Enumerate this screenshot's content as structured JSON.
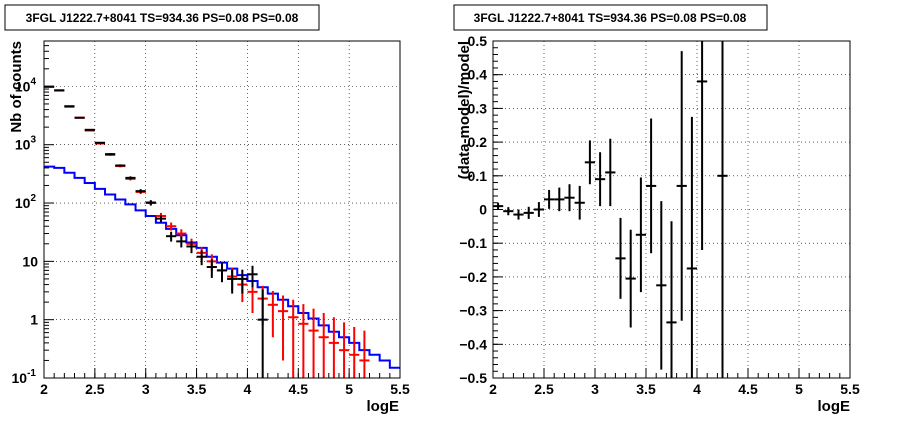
{
  "chart_data": [
    {
      "type": "histogram",
      "title": "3FGL J1222.7+8041 TS=934.36 PS=0.08 PS=0.08",
      "xlabel": "logE",
      "ylabel": "Nb of counts",
      "xlim": [
        2,
        5.5
      ],
      "ylim": [
        0.1,
        60000
      ],
      "yscale": "log",
      "grid": true,
      "x_ticks": [
        "2",
        "2.5",
        "3",
        "3.5",
        "4",
        "4.5",
        "5",
        "5.5"
      ],
      "y_ticks": [
        "10^{-1}",
        "1",
        "10",
        "10^{2}",
        "10^{3}",
        "10^{4}"
      ],
      "x_edges": [
        2.0,
        2.1,
        2.2,
        2.3,
        2.4,
        2.5,
        2.6,
        2.7,
        2.8,
        2.9,
        3.0,
        3.1,
        3.2,
        3.3,
        3.4,
        3.5,
        3.6,
        3.7,
        3.8,
        3.9,
        4.0,
        4.1,
        4.2,
        4.3,
        4.4,
        4.5,
        4.6,
        4.7,
        4.8,
        4.9,
        5.0,
        5.1,
        5.2,
        5.3,
        5.4,
        5.5
      ],
      "series": [
        {
          "kind": "data_points",
          "color": "#000000",
          "x": [
            2.05,
            2.15,
            2.25,
            2.35,
            2.45,
            2.55,
            2.65,
            2.75,
            2.85,
            2.95,
            3.05,
            3.15,
            3.25,
            3.35,
            3.45,
            3.55,
            3.65,
            3.75,
            3.85,
            3.95,
            4.05,
            4.15
          ],
          "y": [
            9900,
            8500,
            4500,
            2900,
            1800,
            1080,
            690,
            440,
            270,
            160,
            102,
            54,
            27,
            22,
            18,
            12,
            8,
            7,
            5,
            5,
            6,
            1
          ],
          "err_low": [
            100,
            90,
            70,
            55,
            42,
            33,
            27,
            21,
            17,
            13,
            10,
            7,
            5.2,
            4.7,
            4.2,
            3.4,
            2.8,
            2.6,
            2.2,
            2.2,
            2.4,
            0.9
          ],
          "err_high": [
            100,
            90,
            70,
            55,
            42,
            33,
            27,
            21,
            17,
            13,
            10,
            7,
            5.2,
            4.7,
            4.2,
            3.4,
            2.8,
            2.6,
            2.2,
            2.2,
            2.4,
            2.3
          ]
        },
        {
          "kind": "model_points",
          "color": "#ff0000",
          "x": [
            2.05,
            2.15,
            2.25,
            2.35,
            2.45,
            2.55,
            2.65,
            2.75,
            2.85,
            2.95,
            3.05,
            3.15,
            3.25,
            3.35,
            3.45,
            3.55,
            3.65,
            3.75,
            3.85,
            3.95,
            4.05,
            4.15,
            4.25,
            4.35,
            4.45,
            4.55,
            4.65,
            4.75,
            4.85,
            4.95,
            5.05,
            5.15
          ],
          "y": [
            9800,
            8600,
            4600,
            2900,
            1750,
            1050,
            670,
            430,
            260,
            155,
            100,
            60,
            40,
            30,
            20,
            14,
            10,
            7,
            5.5,
            4,
            3,
            2.3,
            1.8,
            1.4,
            1.1,
            0.85,
            0.65,
            0.5,
            0.4,
            0.3,
            0.25,
            0.2
          ],
          "err_low": [
            99,
            93,
            68,
            54,
            42,
            32,
            26,
            21,
            16,
            12.5,
            10,
            7.7,
            6.3,
            5.5,
            4.5,
            3.7,
            3.2,
            2.6,
            2.3,
            2,
            1.7,
            1.5,
            1.3,
            1.2,
            1,
            0.9,
            0.65,
            0.5,
            0.4,
            0.3,
            0.25,
            0.2
          ],
          "err_high": [
            99,
            93,
            68,
            54,
            42,
            32,
            26,
            21,
            16,
            12.5,
            10,
            7.7,
            6.3,
            5.5,
            4.5,
            3.7,
            3.2,
            2.6,
            2.3,
            2,
            1.7,
            1.5,
            1.3,
            1.2,
            1.1,
            1,
            0.9,
            0.8,
            0.7,
            0.6,
            0.5,
            0.45
          ]
        },
        {
          "kind": "histogram_step",
          "color": "#0000ff",
          "values": [
            420,
            400,
            330,
            270,
            220,
            175,
            140,
            115,
            95,
            75,
            60,
            46,
            36,
            28,
            21,
            17,
            12,
            9.5,
            7.5,
            5.8,
            4.6,
            3.6,
            2.8,
            2.2,
            1.7,
            1.3,
            1.05,
            0.8,
            0.62,
            0.5,
            0.4,
            0.3,
            0.25,
            0.2,
            0.15
          ]
        }
      ]
    },
    {
      "type": "scatter_errorbar",
      "title": "3FGL J1222.7+8041 TS=934.36 PS=0.08 PS=0.08",
      "xlabel": "logE",
      "ylabel": "(data-model)/model",
      "xlim": [
        2,
        5.5
      ],
      "ylim": [
        -0.5,
        0.5
      ],
      "grid": true,
      "x_ticks": [
        "2",
        "2.5",
        "3",
        "3.5",
        "4",
        "4.5",
        "5",
        "5.5"
      ],
      "y_ticks": [
        "-0.5",
        "-0.4",
        "-0.3",
        "-0.2",
        "-0.1",
        "0",
        "0.1",
        "0.2",
        "0.3",
        "0.4",
        "0.5"
      ],
      "series": [
        {
          "color": "#000000",
          "x": [
            2.05,
            2.15,
            2.25,
            2.35,
            2.45,
            2.55,
            2.65,
            2.75,
            2.85,
            2.95,
            3.05,
            3.15,
            3.25,
            3.35,
            3.45,
            3.55,
            3.65,
            3.75,
            3.85,
            3.95,
            4.05,
            4.25
          ],
          "y": [
            0.01,
            -0.005,
            -0.015,
            -0.01,
            0.0,
            0.03,
            0.03,
            0.035,
            0.02,
            0.14,
            0.09,
            0.11,
            -0.145,
            -0.205,
            -0.075,
            0.07,
            -0.225,
            -0.335,
            0.07,
            -0.175,
            0.38,
            0.1
          ],
          "err": [
            0.01,
            0.012,
            0.015,
            0.018,
            0.022,
            0.028,
            0.035,
            0.04,
            0.05,
            0.065,
            0.08,
            0.1,
            0.12,
            0.145,
            0.17,
            0.2,
            0.25,
            0.3,
            0.4,
            0.45,
            0.5,
            0.9
          ]
        }
      ]
    }
  ]
}
